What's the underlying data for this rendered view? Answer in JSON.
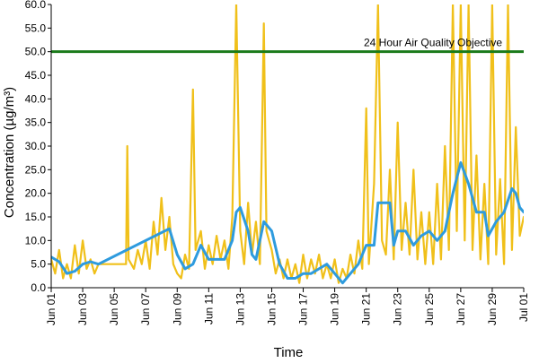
{
  "chart_data": {
    "type": "line",
    "xlabel": "Time",
    "ylabel": "Concentration (µg/m³)",
    "ylim": [
      0,
      60
    ],
    "xlim": [
      "2023-06-01",
      "2023-07-01"
    ],
    "y_ticks": [
      "0.0",
      "5.0",
      "10.0",
      "15.0",
      "20.0",
      "25.0",
      "30.0",
      "35.0",
      "40.0",
      "45.0",
      "50.0",
      "55.0",
      "60.0"
    ],
    "x_ticks": [
      {
        "date": "2023-06-01",
        "label": "Jun 01"
      },
      {
        "date": "2023-06-03",
        "label": "Jun 03"
      },
      {
        "date": "2023-06-05",
        "label": "Jun 05"
      },
      {
        "date": "2023-06-07",
        "label": "Jun 07"
      },
      {
        "date": "2023-06-09",
        "label": "Jun 09"
      },
      {
        "date": "2023-06-11",
        "label": "Jun 11"
      },
      {
        "date": "2023-06-13",
        "label": "Jun 13"
      },
      {
        "date": "2023-06-15",
        "label": "Jun 15"
      },
      {
        "date": "2023-06-17",
        "label": "Jun 17"
      },
      {
        "date": "2023-06-19",
        "label": "Jun 19"
      },
      {
        "date": "2023-06-21",
        "label": "Jun 21"
      },
      {
        "date": "2023-06-23",
        "label": "Jun 23"
      },
      {
        "date": "2023-06-25",
        "label": "Jun 25"
      },
      {
        "date": "2023-06-27",
        "label": "Jun 27"
      },
      {
        "date": "2023-06-29",
        "label": "Jun 29"
      },
      {
        "date": "2023-07-01",
        "label": "Jul 01"
      }
    ],
    "reference_line": {
      "label": "24 Hour Air Quality Objective",
      "value": 50,
      "color": "#1a7a1a"
    },
    "grid": false,
    "legend": "none",
    "series": [
      {
        "color": "#f0c01a",
        "points": [
          [
            "2023-06-01 00:00",
            6
          ],
          [
            "2023-06-01 06:00",
            3
          ],
          [
            "2023-06-01 12:00",
            8
          ],
          [
            "2023-06-01 18:00",
            2
          ],
          [
            "2023-06-02 00:00",
            5
          ],
          [
            "2023-06-02 06:00",
            2
          ],
          [
            "2023-06-02 12:00",
            9
          ],
          [
            "2023-06-02 18:00",
            3
          ],
          [
            "2023-06-03 00:00",
            10
          ],
          [
            "2023-06-03 06:00",
            4
          ],
          [
            "2023-06-03 12:00",
            6
          ],
          [
            "2023-06-03 18:00",
            3
          ],
          [
            "2023-06-04 00:00",
            5
          ],
          [
            "2023-06-05 18:00",
            5
          ],
          [
            "2023-06-05 20:00",
            30
          ],
          [
            "2023-06-05 22:00",
            6
          ],
          [
            "2023-06-06 06:00",
            4
          ],
          [
            "2023-06-06 12:00",
            8
          ],
          [
            "2023-06-06 18:00",
            5
          ],
          [
            "2023-06-07 00:00",
            10
          ],
          [
            "2023-06-07 06:00",
            4
          ],
          [
            "2023-06-07 12:00",
            14
          ],
          [
            "2023-06-07 18:00",
            7
          ],
          [
            "2023-06-08 00:00",
            19
          ],
          [
            "2023-06-08 06:00",
            8
          ],
          [
            "2023-06-08 12:00",
            15
          ],
          [
            "2023-06-08 18:00",
            5
          ],
          [
            "2023-06-09 00:00",
            3
          ],
          [
            "2023-06-09 06:00",
            2
          ],
          [
            "2023-06-09 12:00",
            7
          ],
          [
            "2023-06-09 18:00",
            4
          ],
          [
            "2023-06-10 00:00",
            42
          ],
          [
            "2023-06-10 04:00",
            8
          ],
          [
            "2023-06-10 12:00",
            12
          ],
          [
            "2023-06-10 18:00",
            4
          ],
          [
            "2023-06-11 00:00",
            9
          ],
          [
            "2023-06-11 06:00",
            5
          ],
          [
            "2023-06-11 12:00",
            11
          ],
          [
            "2023-06-11 18:00",
            6
          ],
          [
            "2023-06-12 00:00",
            10
          ],
          [
            "2023-06-12 06:00",
            4
          ],
          [
            "2023-06-12 12:00",
            15
          ],
          [
            "2023-06-12 18:00",
            60
          ],
          [
            "2023-06-13 00:00",
            12
          ],
          [
            "2023-06-13 06:00",
            5
          ],
          [
            "2023-06-13 12:00",
            18
          ],
          [
            "2023-06-13 18:00",
            7
          ],
          [
            "2023-06-14 00:00",
            14
          ],
          [
            "2023-06-14 06:00",
            5
          ],
          [
            "2023-06-14 12:00",
            56
          ],
          [
            "2023-06-14 16:00",
            12
          ],
          [
            "2023-06-15 00:00",
            8
          ],
          [
            "2023-06-15 06:00",
            3
          ],
          [
            "2023-06-15 12:00",
            6
          ],
          [
            "2023-06-15 18:00",
            2
          ],
          [
            "2023-06-16 00:00",
            6
          ],
          [
            "2023-06-16 06:00",
            2
          ],
          [
            "2023-06-16 12:00",
            5
          ],
          [
            "2023-06-16 18:00",
            1
          ],
          [
            "2023-06-17 00:00",
            7
          ],
          [
            "2023-06-17 06:00",
            2
          ],
          [
            "2023-06-17 12:00",
            6
          ],
          [
            "2023-06-17 18:00",
            3
          ],
          [
            "2023-06-18 00:00",
            7
          ],
          [
            "2023-06-18 06:00",
            2
          ],
          [
            "2023-06-18 12:00",
            5
          ],
          [
            "2023-06-18 18:00",
            2
          ],
          [
            "2023-06-19 00:00",
            6
          ],
          [
            "2023-06-19 06:00",
            1
          ],
          [
            "2023-06-19 12:00",
            4
          ],
          [
            "2023-06-19 18:00",
            2
          ],
          [
            "2023-06-20 00:00",
            7
          ],
          [
            "2023-06-20 06:00",
            3
          ],
          [
            "2023-06-20 12:00",
            10
          ],
          [
            "2023-06-20 18:00",
            4
          ],
          [
            "2023-06-21 00:00",
            38
          ],
          [
            "2023-06-21 04:00",
            5
          ],
          [
            "2023-06-21 12:00",
            22
          ],
          [
            "2023-06-21 18:00",
            60
          ],
          [
            "2023-06-22 00:00",
            10
          ],
          [
            "2023-06-22 06:00",
            7
          ],
          [
            "2023-06-22 12:00",
            25
          ],
          [
            "2023-06-22 18:00",
            6
          ],
          [
            "2023-06-23 00:00",
            35
          ],
          [
            "2023-06-23 06:00",
            8
          ],
          [
            "2023-06-23 12:00",
            18
          ],
          [
            "2023-06-23 18:00",
            7
          ],
          [
            "2023-06-24 00:00",
            25
          ],
          [
            "2023-06-24 06:00",
            6
          ],
          [
            "2023-06-24 12:00",
            16
          ],
          [
            "2023-06-24 18:00",
            5
          ],
          [
            "2023-06-25 00:00",
            16
          ],
          [
            "2023-06-25 06:00",
            5
          ],
          [
            "2023-06-25 12:00",
            22
          ],
          [
            "2023-06-25 18:00",
            6
          ],
          [
            "2023-06-26 00:00",
            30
          ],
          [
            "2023-06-26 06:00",
            8
          ],
          [
            "2023-06-26 12:00",
            60
          ],
          [
            "2023-06-26 18:00",
            12
          ],
          [
            "2023-06-27 00:00",
            60
          ],
          [
            "2023-06-27 06:00",
            10
          ],
          [
            "2023-06-27 12:00",
            60
          ],
          [
            "2023-06-27 18:00",
            8
          ],
          [
            "2023-06-28 00:00",
            28
          ],
          [
            "2023-06-28 06:00",
            6
          ],
          [
            "2023-06-28 12:00",
            22
          ],
          [
            "2023-06-28 18:00",
            5
          ],
          [
            "2023-06-29 00:00",
            60
          ],
          [
            "2023-06-29 06:00",
            7
          ],
          [
            "2023-06-29 12:00",
            23
          ],
          [
            "2023-06-29 18:00",
            5
          ],
          [
            "2023-06-30 00:00",
            60
          ],
          [
            "2023-06-30 06:00",
            8
          ],
          [
            "2023-06-30 12:00",
            34
          ],
          [
            "2023-06-30 18:00",
            11
          ],
          [
            "2023-07-01 00:00",
            15
          ]
        ]
      },
      {
        "color": "#2e9bde",
        "points": [
          [
            "2023-06-01 00:00",
            6.5
          ],
          [
            "2023-06-01 12:00",
            5.5
          ],
          [
            "2023-06-02 00:00",
            3
          ],
          [
            "2023-06-02 12:00",
            3.5
          ],
          [
            "2023-06-03 00:00",
            5
          ],
          [
            "2023-06-03 12:00",
            5.5
          ],
          [
            "2023-06-04 00:00",
            5
          ],
          [
            "2023-06-08 12:00",
            12.5
          ],
          [
            "2023-06-09 00:00",
            7
          ],
          [
            "2023-06-09 12:00",
            4
          ],
          [
            "2023-06-10 00:00",
            5
          ],
          [
            "2023-06-10 12:00",
            9
          ],
          [
            "2023-06-11 00:00",
            6
          ],
          [
            "2023-06-11 12:00",
            6
          ],
          [
            "2023-06-12 00:00",
            6
          ],
          [
            "2023-06-12 12:00",
            10
          ],
          [
            "2023-06-12 18:00",
            16
          ],
          [
            "2023-06-13 00:00",
            17
          ],
          [
            "2023-06-13 12:00",
            12
          ],
          [
            "2023-06-13 18:00",
            7
          ],
          [
            "2023-06-14 00:00",
            6
          ],
          [
            "2023-06-14 12:00",
            14
          ],
          [
            "2023-06-15 00:00",
            12
          ],
          [
            "2023-06-15 12:00",
            5
          ],
          [
            "2023-06-16 00:00",
            2
          ],
          [
            "2023-06-16 12:00",
            2
          ],
          [
            "2023-06-17 00:00",
            3
          ],
          [
            "2023-06-17 12:00",
            3
          ],
          [
            "2023-06-18 00:00",
            4
          ],
          [
            "2023-06-18 12:00",
            5
          ],
          [
            "2023-06-19 00:00",
            3
          ],
          [
            "2023-06-19 12:00",
            1
          ],
          [
            "2023-06-20 00:00",
            3
          ],
          [
            "2023-06-20 12:00",
            5
          ],
          [
            "2023-06-21 00:00",
            9
          ],
          [
            "2023-06-21 12:00",
            9
          ],
          [
            "2023-06-21 18:00",
            18
          ],
          [
            "2023-06-22 12:00",
            18
          ],
          [
            "2023-06-22 18:00",
            9
          ],
          [
            "2023-06-23 00:00",
            12
          ],
          [
            "2023-06-23 12:00",
            12
          ],
          [
            "2023-06-24 00:00",
            9
          ],
          [
            "2023-06-24 12:00",
            11
          ],
          [
            "2023-06-25 00:00",
            12
          ],
          [
            "2023-06-25 12:00",
            10
          ],
          [
            "2023-06-26 00:00",
            12
          ],
          [
            "2023-06-26 12:00",
            20
          ],
          [
            "2023-06-27 00:00",
            26.5
          ],
          [
            "2023-06-27 12:00",
            22
          ],
          [
            "2023-06-28 00:00",
            16
          ],
          [
            "2023-06-28 12:00",
            16
          ],
          [
            "2023-06-28 18:00",
            11
          ],
          [
            "2023-06-29 06:00",
            14
          ],
          [
            "2023-06-29 18:00",
            16
          ],
          [
            "2023-06-30 06:00",
            21
          ],
          [
            "2023-06-30 12:00",
            20
          ],
          [
            "2023-06-30 18:00",
            17
          ],
          [
            "2023-07-01 00:00",
            16
          ]
        ]
      }
    ]
  }
}
